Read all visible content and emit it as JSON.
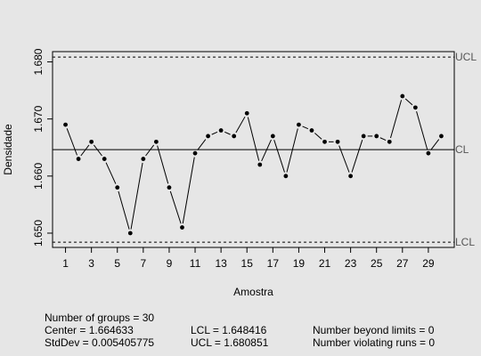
{
  "chart_data": {
    "type": "line",
    "title": "",
    "xlabel": "Amostra",
    "ylabel": "Densidade",
    "xlim": [
      0,
      31
    ],
    "ylim": [
      1.6475,
      1.6818
    ],
    "x_ticks": [
      1,
      3,
      5,
      7,
      9,
      11,
      13,
      15,
      17,
      19,
      21,
      23,
      25,
      27,
      29
    ],
    "x_tick_labels": [
      "1",
      "3",
      "5",
      "7",
      "9",
      "11",
      "13",
      "15",
      "17",
      "19",
      "21",
      "23",
      "25",
      "27",
      "29"
    ],
    "y_ticks": [
      1.65,
      1.66,
      1.67,
      1.68
    ],
    "y_tick_labels": [
      "1.650",
      "1.660",
      "1.670",
      "1.680"
    ],
    "x": [
      1,
      2,
      3,
      4,
      5,
      6,
      7,
      8,
      9,
      10,
      11,
      12,
      13,
      14,
      15,
      16,
      17,
      18,
      19,
      20,
      21,
      22,
      23,
      24,
      25,
      26,
      27,
      28,
      29,
      30
    ],
    "values": [
      1.669,
      1.663,
      1.666,
      1.663,
      1.658,
      1.65,
      1.663,
      1.666,
      1.658,
      1.651,
      1.664,
      1.667,
      1.668,
      1.667,
      1.671,
      1.662,
      1.667,
      1.66,
      1.669,
      1.668,
      1.666,
      1.666,
      1.66,
      1.667,
      1.667,
      1.666,
      1.674,
      1.672,
      1.664,
      1.667
    ],
    "control_lines": [
      {
        "name": "UCL",
        "value": 1.680851,
        "style": "dashed"
      },
      {
        "name": "CL",
        "value": 1.664633,
        "style": "solid"
      },
      {
        "name": "LCL",
        "value": 1.648416,
        "style": "dashed"
      }
    ],
    "grid": false,
    "legend": "none"
  },
  "stats": {
    "groups": "Number of groups = 30",
    "center": "Center = 1.664633",
    "stddev": "StdDev = 0.005405775",
    "lcl": "LCL = 1.648416",
    "ucl": "UCL = 1.680851",
    "beyond": "Number beyond limits = 0",
    "violating": "Number violating runs = 0"
  },
  "colors": {
    "background": "#e6e6e6",
    "ink": "#000000",
    "limit_labels": "#555555"
  }
}
